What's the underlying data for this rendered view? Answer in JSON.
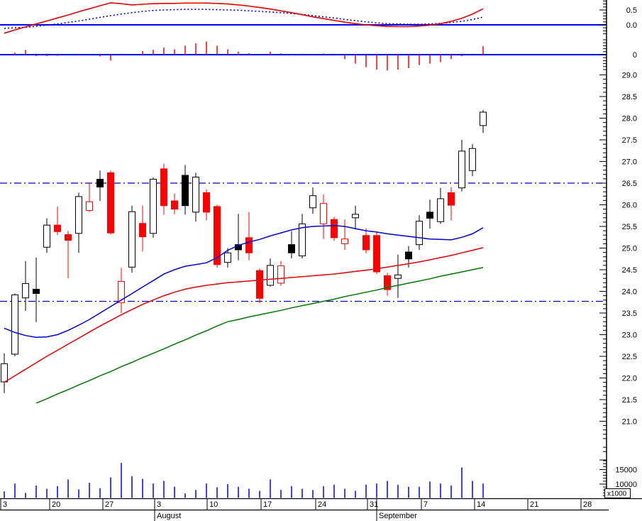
{
  "colors": {
    "up_fill": "#ffffff",
    "up_stroke": "#000000",
    "down_fill": "#ff0000",
    "down_stroke": "#ff0000",
    "black_fill": "#000000",
    "volume_bar": "#0000ff",
    "macd_line": "#e60000",
    "macd_signal": "#0000e0",
    "macd_hist": "#ff0000",
    "zero_line": "#0000ff",
    "dash_line": "#0000cc",
    "ma_fast": "#0000d8",
    "ma_mid": "#e60000",
    "ma_slow": "#007a00",
    "axis": "#000000",
    "label": "#000000",
    "background": "#ffffff"
  },
  "chart_data": {
    "type": "candlestick",
    "title": "",
    "panels": [
      "macd",
      "macd-histogram",
      "price-candles",
      "volume"
    ],
    "indicator_axis": {
      "labels": [
        "0.5",
        "0.0"
      ],
      "values": [
        0.5,
        0.0
      ],
      "histogram_label": "0",
      "histogram_value": 0
    },
    "price_axis": {
      "min": 21.0,
      "max": 29.0,
      "step": 0.5,
      "labels": [
        "29.0",
        "28.5",
        "28.0",
        "27.5",
        "27.0",
        "26.5",
        "26.0",
        "25.5",
        "25.0",
        "24.5",
        "24.0",
        "23.5",
        "23.0",
        "22.5",
        "22.0",
        "21.5",
        "21.0"
      ],
      "values": [
        29.0,
        28.5,
        28.0,
        27.5,
        27.0,
        26.5,
        26.0,
        25.5,
        25.0,
        24.5,
        24.0,
        23.5,
        23.0,
        22.5,
        22.0,
        21.5,
        21.0
      ]
    },
    "volume_axis": {
      "labels": [
        "15000",
        "10000"
      ],
      "values": [
        15000,
        10000
      ],
      "unit_label": "x1000"
    },
    "hlines": [
      26.5,
      23.77
    ],
    "x_axis": {
      "week_ticks": [
        [
          1,
          "3"
        ],
        [
          70,
          "20"
        ],
        [
          145,
          "27"
        ],
        [
          218,
          "3"
        ],
        [
          292,
          "10"
        ],
        [
          368,
          "17"
        ],
        [
          445,
          "24"
        ],
        [
          518,
          "31"
        ],
        [
          594,
          "7"
        ],
        [
          669,
          "14"
        ],
        [
          744,
          "21"
        ],
        [
          819,
          "28"
        ]
      ],
      "months": [
        [
          218,
          "August"
        ],
        [
          531,
          "September"
        ]
      ]
    },
    "candle_fields": [
      "date",
      "open",
      "high",
      "low",
      "close",
      "style",
      "volume",
      "macd_hist"
    ],
    "candles": [
      [
        "Jul 13",
        21.91,
        22.57,
        21.65,
        22.33,
        "white",
        7500,
        0.02
      ],
      [
        "Jul 14",
        22.55,
        23.95,
        22.5,
        23.92,
        "white",
        10200,
        0.07
      ],
      [
        "Jul 15",
        23.85,
        24.7,
        23.55,
        24.18,
        "white",
        7000,
        0.16
      ],
      [
        "Jul 16",
        24.05,
        24.78,
        23.29,
        23.95,
        "black",
        9500,
        -0.05
      ],
      [
        "Jul 17",
        25.02,
        25.69,
        24.89,
        25.53,
        "white",
        8400,
        -0.05
      ],
      [
        "Jul 20",
        25.53,
        25.96,
        25.3,
        25.38,
        "red",
        9300,
        -0.04
      ],
      [
        "Jul 21",
        25.31,
        25.4,
        24.3,
        25.18,
        "red",
        11600,
        0.0
      ],
      [
        "Jul 22",
        25.34,
        26.28,
        24.89,
        26.19,
        "white",
        8200,
        -0.03
      ],
      [
        "Jul 23",
        26.07,
        26.5,
        25.83,
        25.87,
        "red-hollow",
        10450,
        0.0
      ],
      [
        "Jul 24",
        26.59,
        26.79,
        26.09,
        26.41,
        "black",
        8600,
        -0.06
      ],
      [
        "Jul 27",
        26.74,
        26.79,
        25.31,
        25.35,
        "red",
        12270,
        -0.2
      ],
      [
        "Jul 28",
        24.23,
        24.54,
        23.5,
        23.74,
        "red-hollow",
        17260,
        0.03
      ],
      [
        "Jul 29",
        24.56,
        25.98,
        24.43,
        25.84,
        "white",
        12700,
        0.0
      ],
      [
        "Jul 30",
        25.57,
        25.98,
        24.92,
        25.26,
        "red",
        11800,
        0.12
      ],
      [
        "Jul 31",
        25.34,
        26.63,
        25.24,
        26.59,
        "white",
        10200,
        0.16
      ],
      [
        "Aug 3",
        26.83,
        26.95,
        25.77,
        25.98,
        "red",
        11100,
        0.24
      ],
      [
        "Aug 4",
        26.09,
        26.26,
        25.78,
        25.9,
        "red",
        9100,
        0.18
      ],
      [
        "Aug 5",
        26.68,
        26.92,
        25.77,
        25.98,
        "black",
        6800,
        0.3
      ],
      [
        "Aug 6",
        25.83,
        26.74,
        25.61,
        26.64,
        "white",
        8000,
        0.38
      ],
      [
        "Aug 7",
        26.28,
        26.35,
        25.64,
        25.83,
        "red",
        10200,
        0.44
      ],
      [
        "Aug 10",
        25.96,
        26.0,
        24.55,
        24.62,
        "red",
        8900,
        0.3
      ],
      [
        "Aug 11",
        24.67,
        25.0,
        24.55,
        24.89,
        "white",
        10000,
        0.18
      ],
      [
        "Aug 12",
        25.08,
        25.79,
        24.72,
        24.96,
        "black",
        9100,
        0.1
      ],
      [
        "Aug 13",
        25.24,
        25.83,
        24.72,
        24.89,
        "red",
        8400,
        0.05
      ],
      [
        "Aug 14",
        24.48,
        24.53,
        23.73,
        23.84,
        "red",
        7700,
        0.02
      ],
      [
        "Aug 17",
        24.14,
        24.76,
        24.11,
        24.6,
        "white",
        11600,
        0.1
      ],
      [
        "Aug 18",
        24.59,
        24.7,
        24.13,
        24.19,
        "red-hollow",
        8000,
        0.04
      ],
      [
        "Aug 19",
        25.08,
        25.39,
        24.76,
        24.89,
        "black",
        9300,
        -0.02
      ],
      [
        "Aug 20",
        24.82,
        25.79,
        24.76,
        25.56,
        "white",
        8400,
        0.03
      ],
      [
        "Aug 21",
        25.93,
        26.4,
        25.79,
        26.21,
        "white",
        8000,
        0.02
      ],
      [
        "Aug 24",
        26.03,
        26.24,
        25.21,
        25.56,
        "red-hollow",
        9300,
        0.04
      ],
      [
        "Aug 25",
        25.66,
        25.72,
        25.17,
        25.24,
        "red",
        9800,
        0.03
      ],
      [
        "Aug 26",
        25.21,
        25.66,
        24.96,
        25.1,
        "red-hollow",
        8400,
        -0.15
      ],
      [
        "Aug 27",
        25.7,
        25.98,
        25.43,
        25.78,
        "white",
        7700,
        -0.3
      ],
      [
        "Aug 28",
        25.29,
        25.46,
        24.88,
        24.96,
        "red",
        9800,
        -0.42
      ],
      [
        "Aug 31",
        25.29,
        25.38,
        24.4,
        24.45,
        "red",
        10200,
        -0.5
      ],
      [
        "Sep 1",
        24.36,
        24.43,
        23.9,
        24.04,
        "red",
        11100,
        -0.53
      ],
      [
        "Sep 2",
        24.3,
        24.85,
        23.85,
        24.38,
        "white",
        9800,
        -0.5
      ],
      [
        "Sep 3",
        24.91,
        25.05,
        24.55,
        24.75,
        "black",
        9100,
        -0.45
      ],
      [
        "Sep 4",
        25.08,
        25.76,
        24.96,
        25.62,
        "white",
        9100,
        -0.35
      ],
      [
        "Sep 7",
        25.83,
        26.12,
        25.45,
        25.69,
        "black",
        10900,
        -0.3
      ],
      [
        "Sep 8",
        25.61,
        26.39,
        25.56,
        26.14,
        "white",
        10200,
        -0.25
      ],
      [
        "Sep 9",
        26.28,
        26.41,
        25.64,
        25.99,
        "red",
        9500,
        -0.15
      ],
      [
        "Sep 10",
        26.39,
        27.5,
        26.31,
        27.24,
        "white",
        15700,
        -0.05
      ],
      [
        "Sep 11",
        26.79,
        27.4,
        26.66,
        27.3,
        "white",
        11100,
        0.03
      ],
      [
        "Sep 14",
        27.83,
        28.19,
        27.66,
        28.14,
        "white",
        10200,
        0.28
      ]
    ],
    "ma_blue": [
      23.15,
      23.05,
      22.98,
      22.94,
      22.95,
      23.0,
      23.1,
      23.22,
      23.35,
      23.5,
      23.65,
      23.8,
      23.95,
      24.1,
      24.25,
      24.4,
      24.5,
      24.58,
      24.62,
      24.66,
      24.78,
      24.95,
      25.06,
      25.14,
      25.2,
      25.28,
      25.35,
      25.42,
      25.47,
      25.5,
      25.51,
      25.52,
      25.5,
      25.45,
      25.4,
      25.37,
      25.33,
      25.3,
      25.27,
      25.24,
      25.21,
      25.2,
      25.19,
      25.25,
      25.33,
      25.47
    ],
    "ma_red": [
      21.9,
      22.05,
      22.2,
      22.35,
      22.5,
      22.64,
      22.78,
      22.92,
      23.06,
      23.2,
      23.33,
      23.46,
      23.58,
      23.7,
      23.8,
      23.9,
      23.98,
      24.05,
      24.1,
      24.14,
      24.17,
      24.2,
      24.22,
      24.24,
      24.26,
      24.28,
      24.3,
      24.32,
      24.34,
      24.36,
      24.38,
      24.4,
      24.43,
      24.46,
      24.49,
      24.52,
      24.56,
      24.6,
      24.64,
      24.68,
      24.73,
      24.78,
      24.83,
      24.89,
      24.95,
      25.01
    ],
    "ma_green": [
      null,
      null,
      null,
      21.42,
      21.52,
      21.63,
      21.73,
      21.84,
      21.94,
      22.05,
      22.15,
      22.26,
      22.36,
      22.47,
      22.57,
      22.67,
      22.78,
      22.88,
      22.99,
      23.09,
      23.2,
      23.3,
      23.35,
      23.41,
      23.46,
      23.51,
      23.56,
      23.62,
      23.67,
      23.72,
      23.77,
      23.82,
      23.88,
      23.93,
      23.98,
      24.03,
      24.09,
      24.14,
      24.19,
      24.24,
      24.29,
      24.35,
      24.4,
      24.45,
      24.5,
      24.55
    ],
    "macd_line": [
      -0.28,
      -0.17,
      -0.07,
      0.03,
      0.13,
      0.23,
      0.33,
      0.44,
      0.54,
      0.64,
      0.74,
      0.71,
      0.67,
      0.69,
      0.71,
      0.72,
      0.72,
      0.73,
      0.73,
      0.73,
      0.72,
      0.7,
      0.67,
      0.63,
      0.58,
      0.53,
      0.47,
      0.41,
      0.34,
      0.27,
      0.21,
      0.15,
      0.09,
      0.04,
      0.0,
      -0.03,
      -0.05,
      -0.06,
      -0.06,
      -0.04,
      -0.01,
      0.04,
      0.12,
      0.22,
      0.36,
      0.54
    ],
    "macd_signal": [
      -0.12,
      -0.1,
      -0.08,
      -0.05,
      -0.01,
      0.03,
      0.08,
      0.13,
      0.19,
      0.25,
      0.31,
      0.36,
      0.41,
      0.45,
      0.48,
      0.5,
      0.51,
      0.52,
      0.52,
      0.52,
      0.51,
      0.5,
      0.49,
      0.47,
      0.45,
      0.43,
      0.41,
      0.38,
      0.35,
      0.31,
      0.27,
      0.23,
      0.18,
      0.14,
      0.1,
      0.07,
      0.04,
      0.03,
      0.02,
      0.02,
      0.03,
      0.05,
      0.08,
      0.12,
      0.18,
      0.26
    ]
  }
}
